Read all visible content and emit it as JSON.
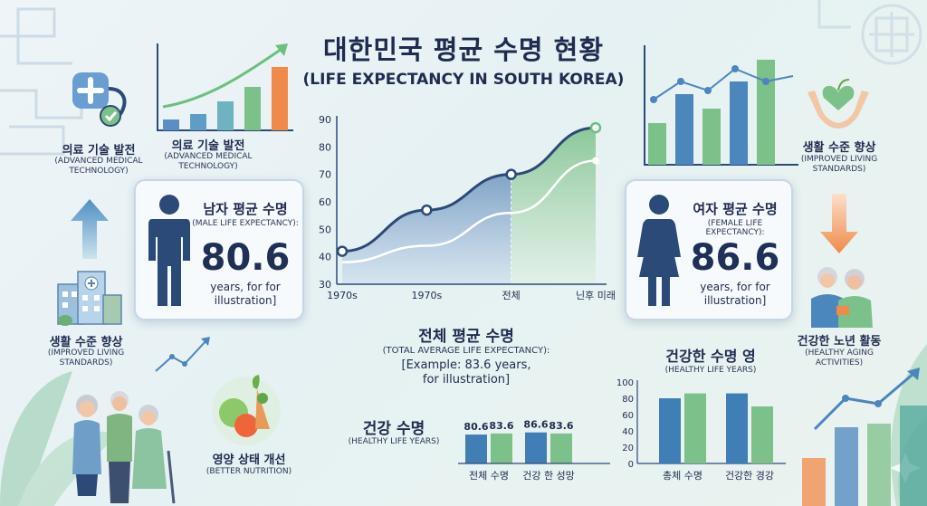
{
  "header": {
    "title_ko": "대한민국 평균 수명 현황",
    "title_en": "(LIFE EXPECTANCY IN SOUTH KOREA)"
  },
  "left_column": {
    "medical_tech": {
      "ko": "의료 기술 발전",
      "en_1": "(ADVANCED MEDICAL",
      "en_2": "TECHNOLOGY)"
    },
    "chart_caption": {
      "ko": "의료 기술 발전",
      "en_1": "(ADVANCED MEDICAL",
      "en_2": "TECHNOLOGY)"
    },
    "living_standards": {
      "ko": "생활 수준 향상",
      "en_1": "(IMPROVED LIVING",
      "en_2": "STANDARDS)"
    },
    "nutrition": {
      "ko": "영양 상태 개선",
      "en": "(BETTER NUTRITION)"
    }
  },
  "male_card": {
    "title": "남자 평균 수명",
    "subtitle": "(MALE LIFE EXPECTANCY):",
    "value": "80.6",
    "note_1": "years, for for",
    "note_2": "illustration]"
  },
  "female_card": {
    "title": "여자 평균 수명",
    "subtitle": "(FEMALE LIFE EXPECTANCY):",
    "value": "86.6",
    "note_1": "years, for for",
    "note_2": "illustration]"
  },
  "right_column": {
    "living_standards": {
      "ko": "생활 수준 향상",
      "en_1": "(IMPROVED LIVING",
      "en_2": "STANDARDS)"
    },
    "healthy_aging": {
      "ko": "건강한 노년 활동",
      "en_1": "(HEALTHY AGING",
      "en_2": "ACTIVITIES)"
    }
  },
  "total_average": {
    "ko": "전체 평균 수명",
    "en": "(TOTAL AVERAGE LIFE EXPECTANCY):",
    "example_1": "[Example: 83.6 years,",
    "example_2": "for illustration]"
  },
  "healthy_life_label": {
    "ko": "건강 수명",
    "en": "(HEALTHY LIFE YEARS)"
  },
  "healthy_life_right": {
    "ko": "건강한 수명 영",
    "en": "(HEALTHY LIFE YEARS)"
  },
  "colors": {
    "navy": "#2c4a78",
    "blue": "#3f7fb5",
    "green": "#7cc08a",
    "orange": "#f08a48",
    "teal": "#4aa39a"
  },
  "icons": [
    "stethoscope-icon",
    "male-figure-icon",
    "female-figure-icon",
    "hospital-icon",
    "vegetables-icon",
    "elderly-family-icon",
    "heart-hands-icon",
    "elderly-couple-icon",
    "up-arrow-icon",
    "down-arrow-icon"
  ],
  "chart_data": [
    {
      "type": "area",
      "x": [
        "1970s",
        "1970s",
        "전체",
        "닌후 미래"
      ],
      "series": [
        {
          "values": [
            42,
            57,
            70,
            87
          ]
        },
        {
          "values": [
            38,
            44,
            56,
            75
          ]
        }
      ],
      "yticks": [
        30,
        40,
        50,
        60,
        70,
        80,
        90
      ],
      "ylim": [
        30,
        90
      ],
      "grid": false
    },
    {
      "type": "bar",
      "categories": [
        "전체 수명",
        "건강 한 성망"
      ],
      "series": [
        {
          "values": [
            80.6,
            86.6
          ]
        },
        {
          "values": [
            83.6,
            83.6
          ]
        }
      ],
      "data_labels": [
        "80.6",
        "83.6",
        "86.6",
        "83.6"
      ],
      "ylim": [
        0,
        100
      ]
    },
    {
      "type": "bar",
      "categories": [
        "총체 수명",
        "건강한 경강"
      ],
      "series": [
        {
          "values": [
            80,
            86
          ]
        },
        {
          "values": [
            86,
            70
          ]
        }
      ],
      "yticks": [
        0,
        20,
        40,
        60,
        80,
        100
      ],
      "ylim": [
        0,
        100
      ]
    }
  ]
}
